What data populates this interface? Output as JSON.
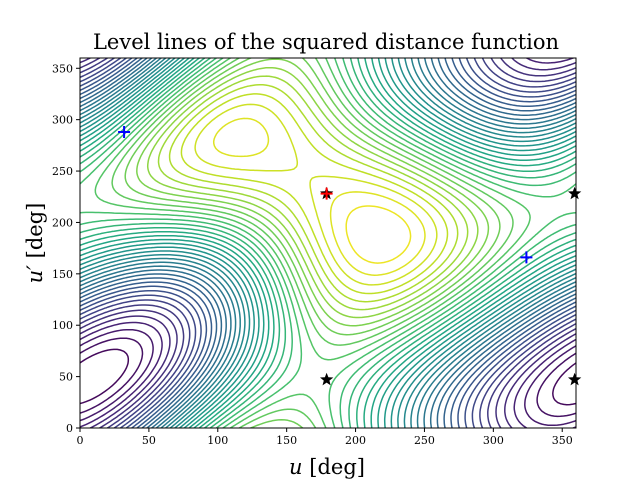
{
  "chart_data": {
    "type": "contour",
    "title": "Level lines of the squared distance function",
    "xlabel_var": "u",
    "xlabel_unit": "[deg]",
    "ylabel_var": "u′",
    "ylabel_unit": "[deg]",
    "xlim": [
      0,
      360
    ],
    "ylim": [
      0,
      360
    ],
    "xticks": [
      0,
      50,
      100,
      150,
      200,
      250,
      300,
      350
    ],
    "yticks": [
      0,
      50,
      100,
      150,
      200,
      250,
      300,
      350
    ],
    "colormap": "viridis",
    "grid": false,
    "markers": {
      "red_cross": [
        {
          "x": 179,
          "y": 228
        }
      ],
      "blue_crosses": [
        {
          "x": 32,
          "y": 288
        },
        {
          "x": 324,
          "y": 166
        }
      ],
      "black_stars": [
        {
          "x": 179,
          "y": 228
        },
        {
          "x": 179,
          "y": 47
        },
        {
          "x": 359,
          "y": 228
        },
        {
          "x": 359,
          "y": 47
        }
      ]
    },
    "colors": {
      "red_cross": "#ff0000",
      "blue_cross": "#0000ff",
      "star": "#000000"
    }
  }
}
